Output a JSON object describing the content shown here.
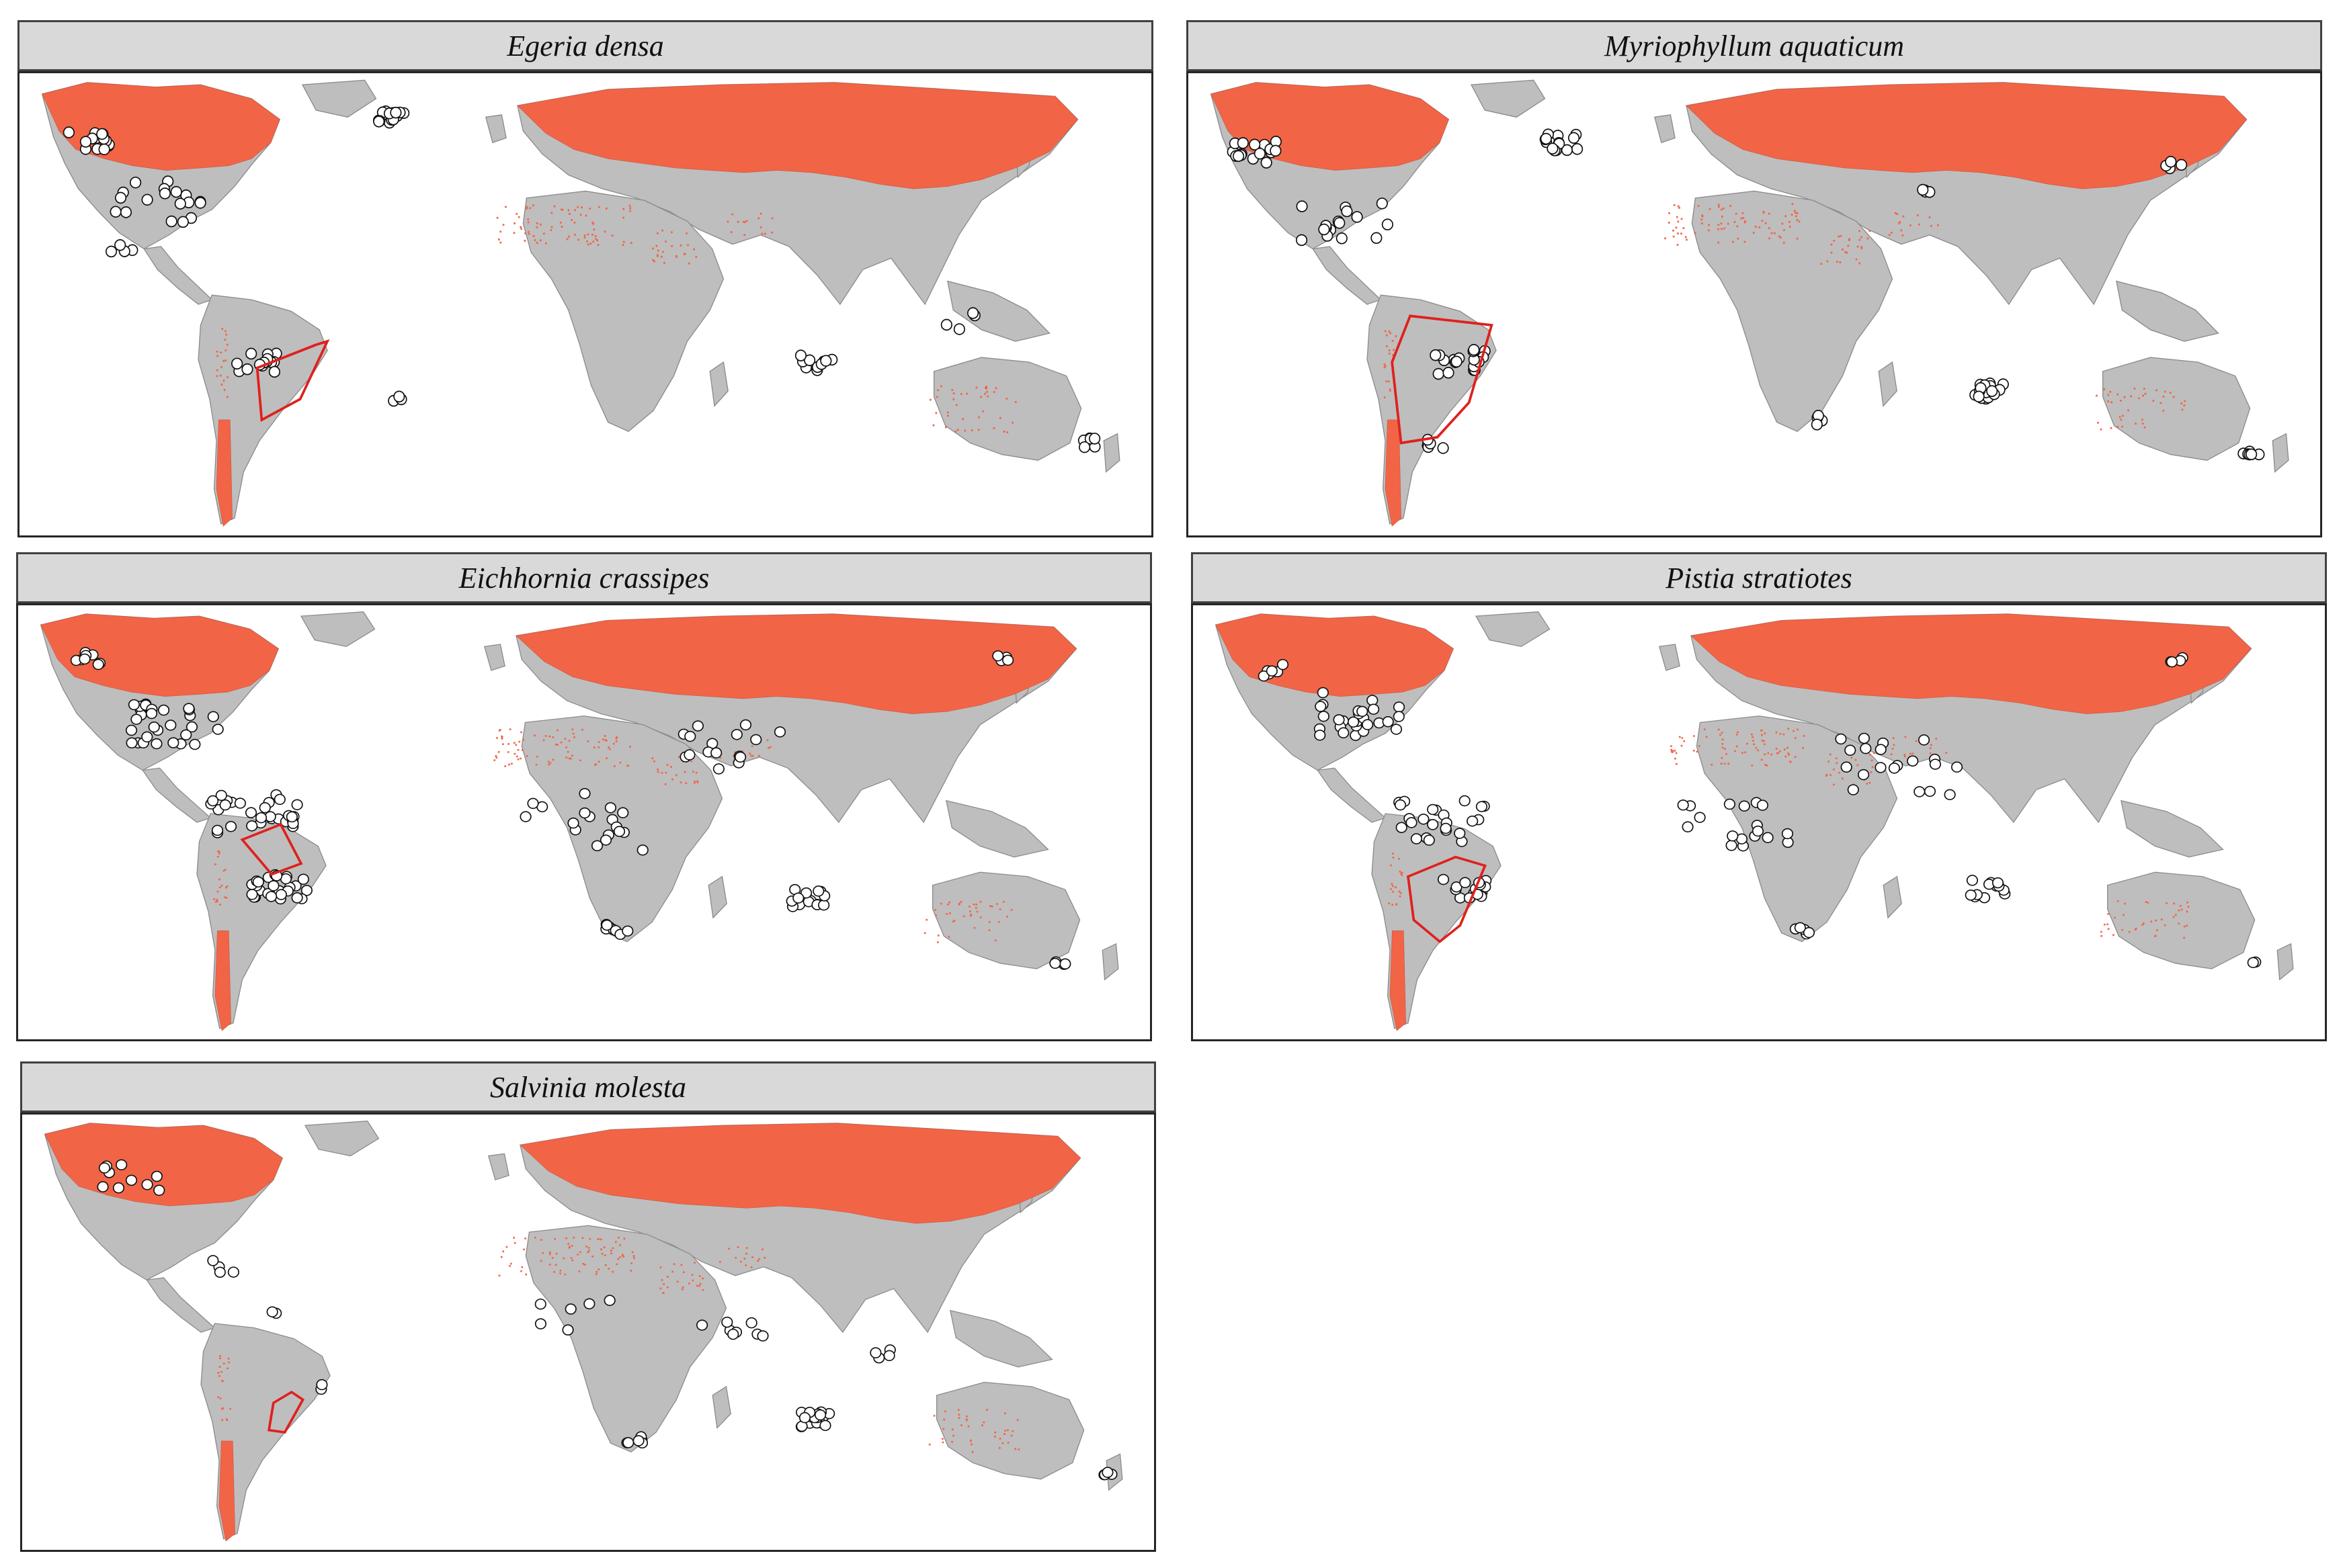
{
  "figure": {
    "panels": [
      {
        "id": "egeria",
        "title": "Egeria densa"
      },
      {
        "id": "myriophyllum",
        "title": "Myriophyllum aquaticum"
      },
      {
        "id": "eichhornia",
        "title": "Eichhornia crassipes"
      },
      {
        "id": "pistia",
        "title": "Pistia stratiotes"
      },
      {
        "id": "salvinia",
        "title": "Salvinia molesta"
      }
    ],
    "legend_colors": {
      "land": "#bebebe",
      "unsuitable_region": "#f26446",
      "occurrence_fill": "#ffffff",
      "occurrence_stroke": "#111111",
      "native_range_outline": "#e0201c",
      "borders": "#8c8c8c"
    }
  }
}
